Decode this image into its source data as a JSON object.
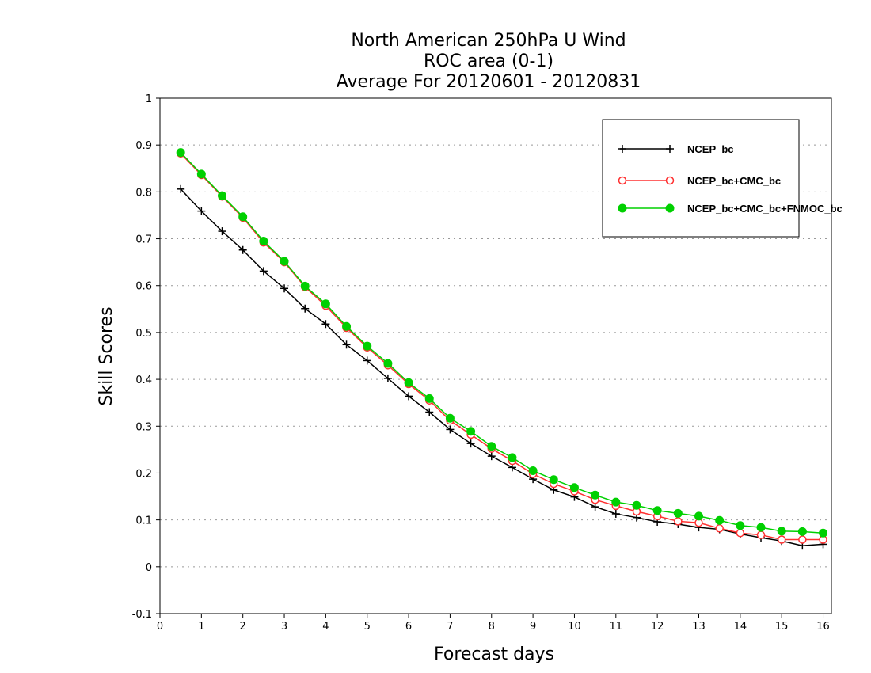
{
  "chart_data": {
    "type": "line",
    "title": [
      "North American 250hPa U Wind",
      "ROC area (0-1)",
      "Average For 20120601 - 20120831"
    ],
    "xlabel": "Forecast days",
    "ylabel": "Skill Scores",
    "xlim": [
      0,
      16.2
    ],
    "ylim": [
      -0.1,
      1
    ],
    "xticks": [
      0,
      1,
      2,
      3,
      4,
      5,
      6,
      7,
      8,
      9,
      10,
      11,
      12,
      13,
      14,
      15,
      16
    ],
    "yticks": [
      -0.1,
      0,
      0.1,
      0.2,
      0.3,
      0.4,
      0.5,
      0.6,
      0.7,
      0.8,
      0.9,
      1
    ],
    "ytick_labels": [
      "-0.1",
      "0",
      "0.1",
      "0.2",
      "0.3",
      "0.4",
      "0.5",
      "0.6",
      "0.7",
      "0.8",
      "0.9",
      "1"
    ],
    "grid": "horizontal dotted",
    "legend_position": "top-right",
    "x": [
      0.5,
      1,
      1.5,
      2,
      2.5,
      3,
      3.5,
      4,
      4.5,
      5,
      5.5,
      6,
      6.5,
      7,
      7.5,
      8,
      8.5,
      9,
      9.5,
      10,
      10.5,
      11,
      11.5,
      12,
      12.5,
      13,
      13.5,
      14,
      14.5,
      15,
      15.5,
      16
    ],
    "series": [
      {
        "name": "NCEP_bc",
        "color": "#000000",
        "marker": "plus",
        "values": [
          0.806,
          0.759,
          0.716,
          0.676,
          0.631,
          0.594,
          0.551,
          0.518,
          0.474,
          0.44,
          0.402,
          0.364,
          0.33,
          0.293,
          0.263,
          0.236,
          0.212,
          0.187,
          0.164,
          0.149,
          0.128,
          0.113,
          0.105,
          0.096,
          0.091,
          0.084,
          0.08,
          0.07,
          0.062,
          0.055,
          0.045,
          0.048
        ]
      },
      {
        "name": "NCEP_bc+CMC_bc",
        "color": "#ff3030",
        "marker": "open-circle",
        "values": [
          0.882,
          0.836,
          0.79,
          0.745,
          0.692,
          0.65,
          0.597,
          0.557,
          0.51,
          0.468,
          0.43,
          0.39,
          0.355,
          0.312,
          0.282,
          0.252,
          0.226,
          0.198,
          0.177,
          0.161,
          0.143,
          0.13,
          0.118,
          0.108,
          0.097,
          0.094,
          0.082,
          0.072,
          0.068,
          0.058,
          0.058,
          0.058
        ]
      },
      {
        "name": "NCEP_bc+CMC_bc+FNMOC_bc",
        "color": "#00d000",
        "marker": "filled-circle",
        "values": [
          0.884,
          0.838,
          0.792,
          0.747,
          0.695,
          0.652,
          0.599,
          0.561,
          0.513,
          0.471,
          0.434,
          0.393,
          0.359,
          0.317,
          0.289,
          0.257,
          0.233,
          0.205,
          0.186,
          0.169,
          0.153,
          0.138,
          0.131,
          0.12,
          0.114,
          0.108,
          0.099,
          0.088,
          0.084,
          0.076,
          0.075,
          0.072
        ]
      }
    ]
  }
}
